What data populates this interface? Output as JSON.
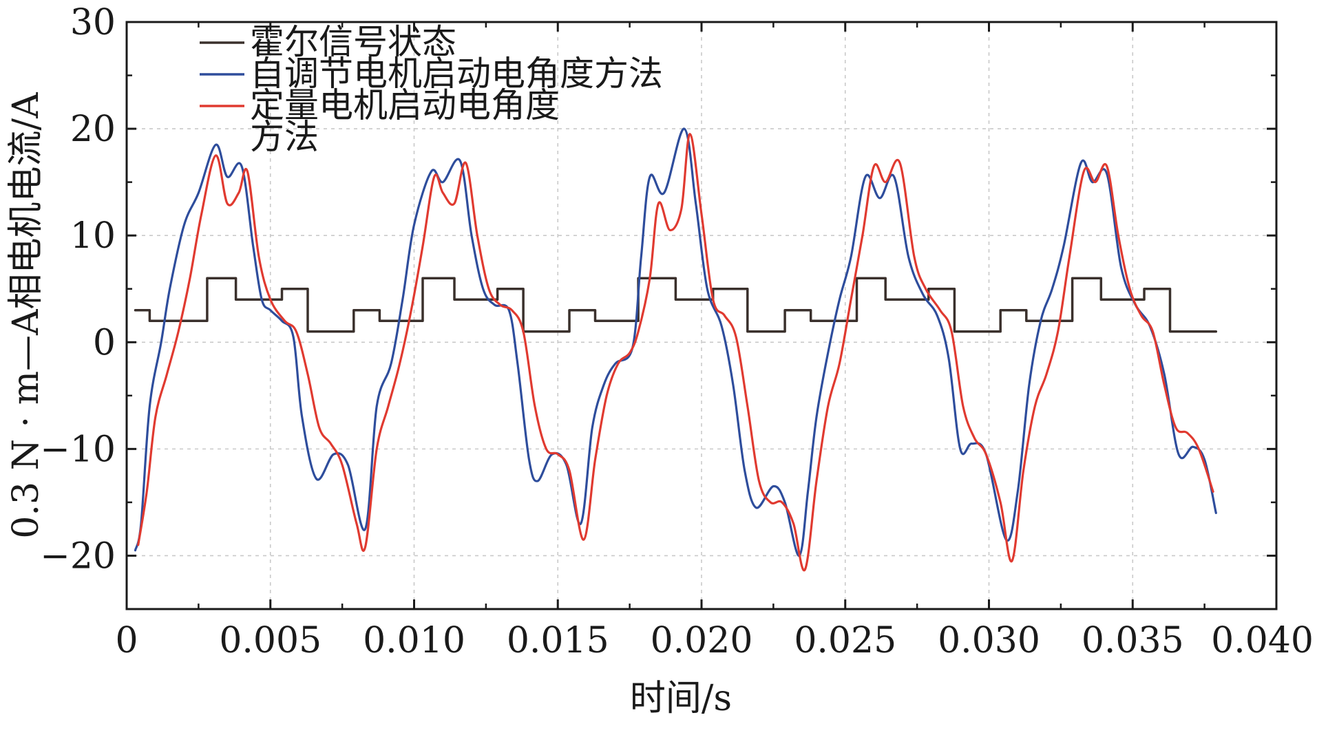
{
  "chart_data": {
    "type": "line",
    "xlabel": "时间/s",
    "ylabel": "0.3 N · m—A相电机电流/A",
    "xlim": [
      0,
      0.04
    ],
    "ylim": [
      -25,
      30
    ],
    "grid": true,
    "legend_position": "top-left",
    "x_ticks": [
      {
        "value": 0,
        "label": "0"
      },
      {
        "value": 0.005,
        "label": "0.005"
      },
      {
        "value": 0.01,
        "label": "0.010"
      },
      {
        "value": 0.015,
        "label": "0.015"
      },
      {
        "value": 0.02,
        "label": "0.020"
      },
      {
        "value": 0.025,
        "label": "0.025"
      },
      {
        "value": 0.03,
        "label": "0.030"
      },
      {
        "value": 0.035,
        "label": "0.035"
      },
      {
        "value": 0.04,
        "label": "0.040"
      }
    ],
    "y_ticks": [
      {
        "value": -20,
        "label": "−20"
      },
      {
        "value": -10,
        "label": "−10"
      },
      {
        "value": 0,
        "label": "0"
      },
      {
        "value": 10,
        "label": "10"
      },
      {
        "value": 20,
        "label": "20"
      },
      {
        "value": 30,
        "label": "30"
      }
    ],
    "series": [
      {
        "name": "霍尔信号状态",
        "legend_lines": [
          "霍尔信号状态"
        ],
        "color": "#3a302c",
        "step": true,
        "points": [
          [
            0.0003,
            3
          ],
          [
            0.0008,
            3
          ],
          [
            0.0008,
            2
          ],
          [
            0.0028,
            2
          ],
          [
            0.0028,
            6
          ],
          [
            0.0038,
            6
          ],
          [
            0.0038,
            4
          ],
          [
            0.0054,
            4
          ],
          [
            0.0054,
            5
          ],
          [
            0.0063,
            5
          ],
          [
            0.0063,
            1
          ],
          [
            0.0079,
            1
          ],
          [
            0.0079,
            3
          ],
          [
            0.0088,
            3
          ],
          [
            0.0088,
            2
          ],
          [
            0.0103,
            2
          ],
          [
            0.0103,
            6
          ],
          [
            0.0114,
            6
          ],
          [
            0.0114,
            4
          ],
          [
            0.0129,
            4
          ],
          [
            0.0129,
            5
          ],
          [
            0.0138,
            5
          ],
          [
            0.0138,
            1
          ],
          [
            0.0154,
            1
          ],
          [
            0.0154,
            3
          ],
          [
            0.0163,
            3
          ],
          [
            0.0163,
            2
          ],
          [
            0.0178,
            2
          ],
          [
            0.0178,
            6
          ],
          [
            0.0191,
            6
          ],
          [
            0.0191,
            4
          ],
          [
            0.0204,
            4
          ],
          [
            0.0204,
            5
          ],
          [
            0.0216,
            5
          ],
          [
            0.0216,
            1
          ],
          [
            0.0229,
            1
          ],
          [
            0.0229,
            3
          ],
          [
            0.0238,
            3
          ],
          [
            0.0238,
            2
          ],
          [
            0.0254,
            2
          ],
          [
            0.0254,
            6
          ],
          [
            0.0264,
            6
          ],
          [
            0.0264,
            4
          ],
          [
            0.0279,
            4
          ],
          [
            0.0279,
            5
          ],
          [
            0.0288,
            5
          ],
          [
            0.0288,
            1
          ],
          [
            0.0304,
            1
          ],
          [
            0.0304,
            3
          ],
          [
            0.0313,
            3
          ],
          [
            0.0313,
            2
          ],
          [
            0.0329,
            2
          ],
          [
            0.0329,
            6
          ],
          [
            0.0339,
            6
          ],
          [
            0.0339,
            4
          ],
          [
            0.0354,
            4
          ],
          [
            0.0354,
            5
          ],
          [
            0.0363,
            5
          ],
          [
            0.0363,
            1
          ],
          [
            0.0379,
            1
          ]
        ]
      },
      {
        "name": "自调节电机启动电角度方法",
        "legend_lines": [
          "自调节电机启动电角度方法"
        ],
        "color": "#2e4d9c",
        "step": false,
        "points": [
          [
            0.0003,
            -19.5
          ],
          [
            0.0005,
            -17
          ],
          [
            0.0008,
            -6
          ],
          [
            0.0012,
            0
          ],
          [
            0.0015,
            5
          ],
          [
            0.002,
            11
          ],
          [
            0.0025,
            14
          ],
          [
            0.0031,
            18.5
          ],
          [
            0.0035,
            15.5
          ],
          [
            0.004,
            16.5
          ],
          [
            0.0044,
            9
          ],
          [
            0.0047,
            4
          ],
          [
            0.005,
            3
          ],
          [
            0.0054,
            2
          ],
          [
            0.0058,
            0.5
          ],
          [
            0.0061,
            -7
          ],
          [
            0.0066,
            -12.8
          ],
          [
            0.0072,
            -10.5
          ],
          [
            0.0077,
            -11.5
          ],
          [
            0.0083,
            -17.5
          ],
          [
            0.0087,
            -6
          ],
          [
            0.0092,
            -2
          ],
          [
            0.0096,
            4
          ],
          [
            0.01,
            11
          ],
          [
            0.0106,
            16
          ],
          [
            0.011,
            15
          ],
          [
            0.0116,
            17
          ],
          [
            0.012,
            10
          ],
          [
            0.0124,
            5
          ],
          [
            0.0128,
            3.5
          ],
          [
            0.0133,
            3
          ],
          [
            0.0136,
            -2
          ],
          [
            0.014,
            -11
          ],
          [
            0.0143,
            -13
          ],
          [
            0.0148,
            -10.5
          ],
          [
            0.0153,
            -11.5
          ],
          [
            0.0158,
            -17
          ],
          [
            0.0162,
            -8
          ],
          [
            0.0166,
            -4
          ],
          [
            0.017,
            -2
          ],
          [
            0.0176,
            -0.5
          ],
          [
            0.0179,
            8
          ],
          [
            0.0182,
            15.5
          ],
          [
            0.0187,
            14
          ],
          [
            0.0194,
            20
          ],
          [
            0.0198,
            13
          ],
          [
            0.0202,
            5
          ],
          [
            0.0207,
            1.5
          ],
          [
            0.0211,
            -4
          ],
          [
            0.0215,
            -12
          ],
          [
            0.0219,
            -15.5
          ],
          [
            0.0225,
            -13.5
          ],
          [
            0.0229,
            -15
          ],
          [
            0.0234,
            -20
          ],
          [
            0.0237,
            -14
          ],
          [
            0.024,
            -7
          ],
          [
            0.0244,
            -1
          ],
          [
            0.0248,
            4
          ],
          [
            0.0252,
            8
          ],
          [
            0.0257,
            15.5
          ],
          [
            0.0262,
            13.5
          ],
          [
            0.0267,
            15.5
          ],
          [
            0.0272,
            8
          ],
          [
            0.0277,
            4.5
          ],
          [
            0.0282,
            2.5
          ],
          [
            0.0286,
            -1.5
          ],
          [
            0.029,
            -10
          ],
          [
            0.0294,
            -9.5
          ],
          [
            0.0299,
            -10.5
          ],
          [
            0.0306,
            -18.5
          ],
          [
            0.031,
            -14
          ],
          [
            0.0314,
            -4
          ],
          [
            0.0318,
            2
          ],
          [
            0.0322,
            5
          ],
          [
            0.0326,
            9
          ],
          [
            0.0332,
            16.8
          ],
          [
            0.0336,
            15
          ],
          [
            0.0341,
            15.8
          ],
          [
            0.0346,
            7
          ],
          [
            0.0351,
            3.5
          ],
          [
            0.0356,
            1.5
          ],
          [
            0.0361,
            -3
          ],
          [
            0.0366,
            -10.5
          ],
          [
            0.0371,
            -9.8
          ],
          [
            0.0375,
            -11
          ],
          [
            0.0379,
            -16
          ]
        ]
      },
      {
        "name": "定量电机启动电角度方法",
        "legend_lines": [
          "定量电机启动电角度",
          "方法"
        ],
        "color": "#e03a30",
        "step": false,
        "points": [
          [
            0.0004,
            -19
          ],
          [
            0.0007,
            -14
          ],
          [
            0.001,
            -7
          ],
          [
            0.0014,
            -3
          ],
          [
            0.0018,
            1
          ],
          [
            0.0022,
            6
          ],
          [
            0.0026,
            12
          ],
          [
            0.0031,
            17.5
          ],
          [
            0.0035,
            13
          ],
          [
            0.0039,
            14
          ],
          [
            0.0042,
            16
          ],
          [
            0.0046,
            8
          ],
          [
            0.005,
            4
          ],
          [
            0.0055,
            2
          ],
          [
            0.0059,
            1
          ],
          [
            0.0063,
            -3
          ],
          [
            0.0067,
            -8
          ],
          [
            0.0071,
            -9.5
          ],
          [
            0.0075,
            -11.5
          ],
          [
            0.008,
            -17
          ],
          [
            0.0083,
            -19.2
          ],
          [
            0.0087,
            -10
          ],
          [
            0.0091,
            -6
          ],
          [
            0.0095,
            -2
          ],
          [
            0.0099,
            3
          ],
          [
            0.0103,
            9
          ],
          [
            0.0107,
            15.5
          ],
          [
            0.011,
            14
          ],
          [
            0.0114,
            13
          ],
          [
            0.0118,
            16.8
          ],
          [
            0.0122,
            10
          ],
          [
            0.0126,
            5
          ],
          [
            0.013,
            3.5
          ],
          [
            0.0134,
            3
          ],
          [
            0.0138,
            1
          ],
          [
            0.0142,
            -6
          ],
          [
            0.0146,
            -10
          ],
          [
            0.015,
            -10.5
          ],
          [
            0.0154,
            -12
          ],
          [
            0.0159,
            -18.5
          ],
          [
            0.0163,
            -11
          ],
          [
            0.0167,
            -5
          ],
          [
            0.0171,
            -2
          ],
          [
            0.0175,
            -1
          ],
          [
            0.0178,
            1
          ],
          [
            0.0182,
            6
          ],
          [
            0.0185,
            13
          ],
          [
            0.0189,
            10.5
          ],
          [
            0.0193,
            12.5
          ],
          [
            0.0196,
            19.5
          ],
          [
            0.02,
            12
          ],
          [
            0.0204,
            4
          ],
          [
            0.0208,
            2.5
          ],
          [
            0.0212,
            0.5
          ],
          [
            0.0216,
            -6
          ],
          [
            0.022,
            -13
          ],
          [
            0.0224,
            -15
          ],
          [
            0.0228,
            -15
          ],
          [
            0.0232,
            -17
          ],
          [
            0.0236,
            -21.3
          ],
          [
            0.024,
            -13
          ],
          [
            0.0244,
            -6
          ],
          [
            0.0248,
            -2
          ],
          [
            0.0252,
            4
          ],
          [
            0.0256,
            10
          ],
          [
            0.026,
            16.5
          ],
          [
            0.0264,
            15
          ],
          [
            0.0269,
            16.8
          ],
          [
            0.0274,
            8
          ],
          [
            0.0278,
            5
          ],
          [
            0.0283,
            3
          ],
          [
            0.0287,
            1
          ],
          [
            0.0291,
            -6
          ],
          [
            0.0295,
            -9
          ],
          [
            0.0299,
            -10.5
          ],
          [
            0.0304,
            -15
          ],
          [
            0.0308,
            -20.5
          ],
          [
            0.0312,
            -12
          ],
          [
            0.0316,
            -6
          ],
          [
            0.032,
            -3
          ],
          [
            0.0324,
            1
          ],
          [
            0.0328,
            8
          ],
          [
            0.0333,
            16
          ],
          [
            0.0337,
            15
          ],
          [
            0.0341,
            16.5
          ],
          [
            0.0345,
            10
          ],
          [
            0.0349,
            5
          ],
          [
            0.0353,
            2.5
          ],
          [
            0.0357,
            1
          ],
          [
            0.0361,
            -4
          ],
          [
            0.0365,
            -8
          ],
          [
            0.0369,
            -8.5
          ],
          [
            0.0373,
            -10
          ],
          [
            0.0378,
            -14
          ]
        ]
      }
    ]
  }
}
